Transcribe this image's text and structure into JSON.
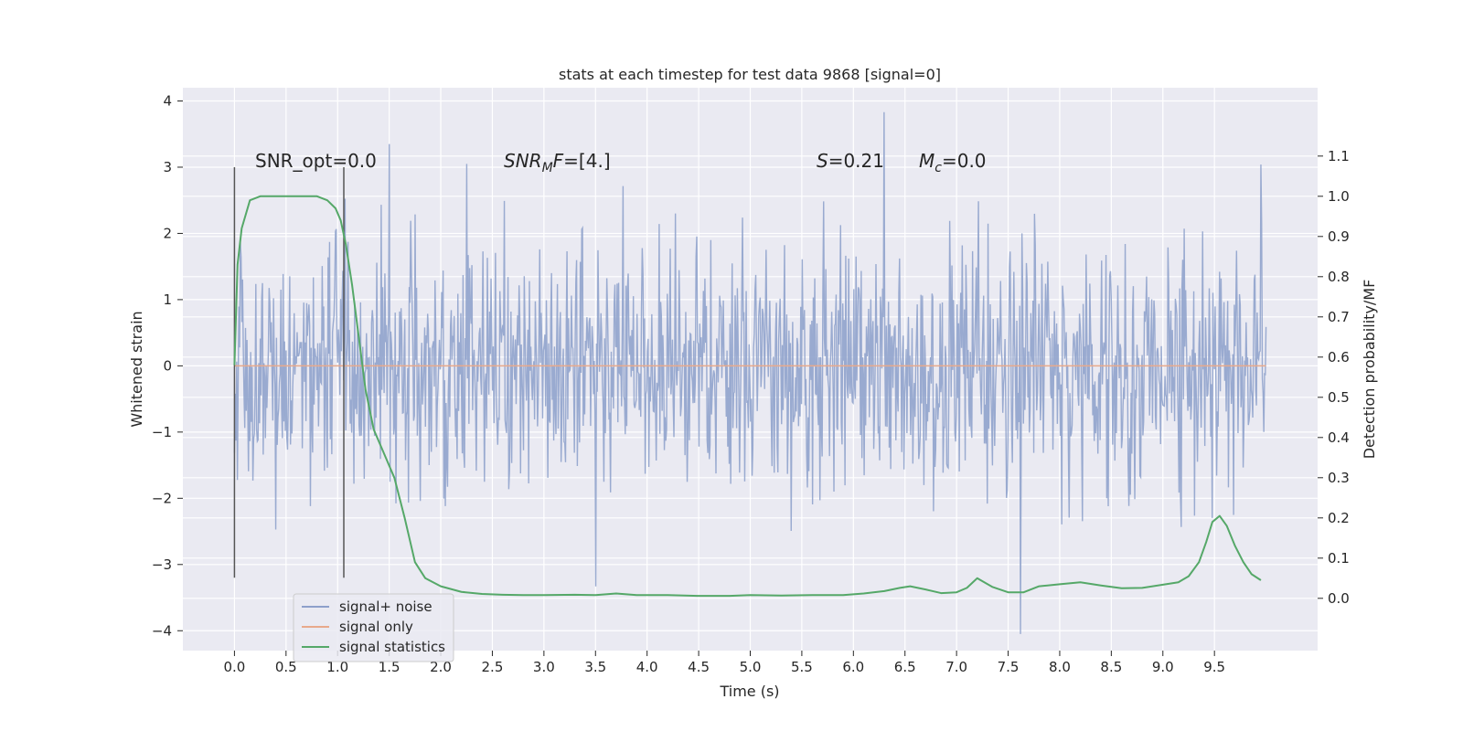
{
  "chart_data": {
    "type": "line",
    "title": "stats at each timestep for test data 9868 [signal=0]",
    "xlabel": "Time (s)",
    "ylabel": "Whitened strain",
    "y2label": "Detection probability/MF",
    "xlim": [
      -0.5,
      10.5
    ],
    "ylim": [
      -4.3,
      4.2
    ],
    "y2lim": [
      -0.13,
      1.27
    ],
    "x_ticks": [
      "0.0",
      "0.5",
      "1.0",
      "1.5",
      "2.0",
      "2.5",
      "3.0",
      "3.5",
      "4.0",
      "4.5",
      "5.0",
      "5.5",
      "6.0",
      "6.5",
      "7.0",
      "7.5",
      "8.0",
      "8.5",
      "9.0",
      "9.5"
    ],
    "y_ticks": [
      "−4",
      "−3",
      "−2",
      "−1",
      "0",
      "1",
      "2",
      "3",
      "4"
    ],
    "y2_ticks": [
      "0.0",
      "0.1",
      "0.2",
      "0.3",
      "0.4",
      "0.5",
      "0.6",
      "0.7",
      "0.8",
      "0.9",
      "1.0",
      "1.1"
    ],
    "grid": true,
    "legend_placement": "lower-left",
    "annotations": {
      "snr_opt": "SNR_opt=0.0",
      "snr_mf_var": "SNR",
      "snr_mf_sub": "M",
      "snr_mf_var2": "F",
      "snr_mf_val": "=[4.]",
      "s_var": "S",
      "s_val": "=0.21",
      "mc_var": "M",
      "mc_sub": "c",
      "mc_val": "=0.0"
    },
    "vlines": {
      "x": [
        0.0,
        1.06
      ],
      "y_range": [
        -3.2,
        3.0
      ],
      "color": "#555555"
    },
    "series": [
      {
        "name": "signal+ noise",
        "color": "#8da0cb",
        "time_range": [
          0.0,
          10.0
        ],
        "envelope_sigma": 0.95,
        "extremes": [
          [
            1.5,
            3.35
          ],
          [
            6.3,
            3.83
          ],
          [
            3.5,
            -3.33
          ],
          [
            7.62,
            -4.05
          ],
          [
            9.95,
            3.04
          ],
          [
            2.25,
            3.05
          ]
        ]
      },
      {
        "name": "signal only",
        "color": "#e8a98b",
        "x": [
          0.0,
          10.0
        ],
        "y": [
          0.0,
          0.0
        ]
      },
      {
        "name": "signal statistics",
        "color": "#55a868",
        "axis": "right",
        "x": [
          0.0,
          0.03,
          0.07,
          0.15,
          0.25,
          0.4,
          0.6,
          0.8,
          0.9,
          0.98,
          1.03,
          1.08,
          1.14,
          1.2,
          1.27,
          1.35,
          1.45,
          1.55,
          1.65,
          1.75,
          1.85,
          2.0,
          2.2,
          2.4,
          2.6,
          2.8,
          3.0,
          3.3,
          3.5,
          3.7,
          3.9,
          4.2,
          4.5,
          4.8,
          5.0,
          5.3,
          5.6,
          5.9,
          6.1,
          6.3,
          6.45,
          6.55,
          6.7,
          6.85,
          7.0,
          7.1,
          7.2,
          7.35,
          7.5,
          7.65,
          7.8,
          8.0,
          8.2,
          8.4,
          8.6,
          8.8,
          9.0,
          9.15,
          9.25,
          9.35,
          9.42,
          9.48,
          9.55,
          9.62,
          9.7,
          9.78,
          9.86,
          9.95
        ],
        "y": [
          0.58,
          0.83,
          0.92,
          0.99,
          1.0,
          1.0,
          1.0,
          1.0,
          0.99,
          0.97,
          0.94,
          0.88,
          0.78,
          0.66,
          0.52,
          0.42,
          0.36,
          0.3,
          0.2,
          0.09,
          0.05,
          0.03,
          0.016,
          0.011,
          0.009,
          0.008,
          0.008,
          0.009,
          0.008,
          0.012,
          0.008,
          0.008,
          0.006,
          0.006,
          0.008,
          0.007,
          0.008,
          0.008,
          0.012,
          0.018,
          0.026,
          0.03,
          0.022,
          0.013,
          0.015,
          0.026,
          0.05,
          0.028,
          0.015,
          0.015,
          0.03,
          0.035,
          0.04,
          0.032,
          0.025,
          0.026,
          0.034,
          0.04,
          0.055,
          0.09,
          0.14,
          0.19,
          0.205,
          0.18,
          0.13,
          0.09,
          0.06,
          0.045
        ]
      }
    ]
  }
}
